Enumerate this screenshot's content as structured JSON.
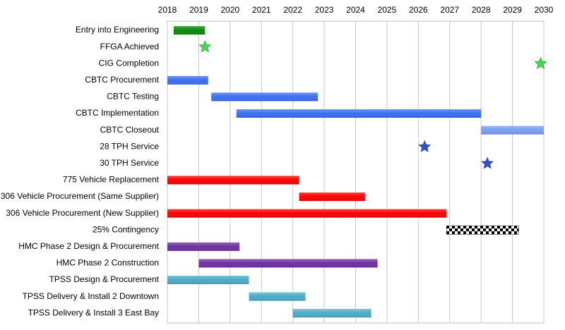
{
  "chart_data": {
    "type": "gantt",
    "xlim": [
      2018,
      2030
    ],
    "xticks": [
      2018,
      2019,
      2020,
      2021,
      2022,
      2023,
      2024,
      2025,
      2026,
      2027,
      2028,
      2029,
      2030
    ],
    "grid": true,
    "tasks": [
      {
        "name": "Entry into Engineering",
        "start": 2018.2,
        "end": 2019.2,
        "color": "#0a8a0a"
      },
      {
        "name": "FFGA Achieved",
        "milestone": 2019.2,
        "color": "#3ddc4a"
      },
      {
        "name": "CIG Completion",
        "milestone": 2029.9,
        "color": "#3ddc4a"
      },
      {
        "name": "CBTC Procurement",
        "start": 2018.0,
        "end": 2019.3,
        "color": "#3a6ff0"
      },
      {
        "name": "CBTC Testing",
        "start": 2019.4,
        "end": 2022.8,
        "color": "#3a6ff0"
      },
      {
        "name": "CBTC Implementation",
        "start": 2020.2,
        "end": 2028.0,
        "color": "#3a6ff0"
      },
      {
        "name": "CBTC Closeout",
        "start": 2028.0,
        "end": 2030.0,
        "color": "#7a9ef5"
      },
      {
        "name": "28 TPH Service",
        "milestone": 2026.2,
        "color": "#2a4fd8"
      },
      {
        "name": "30 TPH Service",
        "milestone": 2028.2,
        "color": "#2a4fd8"
      },
      {
        "name": "775 Vehicle Replacement",
        "start": 2018.0,
        "end": 2022.2,
        "color": "#ff0000"
      },
      {
        "name": "306 Vehicle Procurement (Same Supplier)",
        "start": 2022.2,
        "end": 2024.3,
        "color": "#ff0000"
      },
      {
        "name": "306 Vehicle Procurement (New Supplier)",
        "start": 2018.0,
        "end": 2026.9,
        "color": "#ff0000"
      },
      {
        "name": "25% Contingency",
        "start": 2026.9,
        "end": 2029.2,
        "color": "#000000",
        "pattern": "checkered"
      },
      {
        "name": "HMC Phase 2 Design & Procurement",
        "start": 2018.0,
        "end": 2020.3,
        "color": "#7030a0"
      },
      {
        "name": "HMC Phase 2 Construction",
        "start": 2019.0,
        "end": 2024.7,
        "color": "#7030a0"
      },
      {
        "name": "TPSS Design & Procurement",
        "start": 2018.0,
        "end": 2020.6,
        "color": "#4bacc6"
      },
      {
        "name": "TPSS Delivery & Install 2 Downtown",
        "start": 2020.6,
        "end": 2022.4,
        "color": "#4bacc6"
      },
      {
        "name": "TPSS Delivery & Install 3 East Bay",
        "start": 2022.0,
        "end": 2024.5,
        "color": "#4bacc6"
      }
    ]
  }
}
